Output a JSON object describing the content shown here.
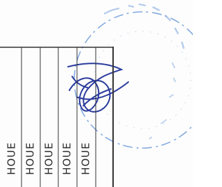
{
  "table": {
    "columns": [
      "HOUE",
      "HOUE",
      "HOUE",
      "HOUE",
      "HOUE"
    ]
  }
}
